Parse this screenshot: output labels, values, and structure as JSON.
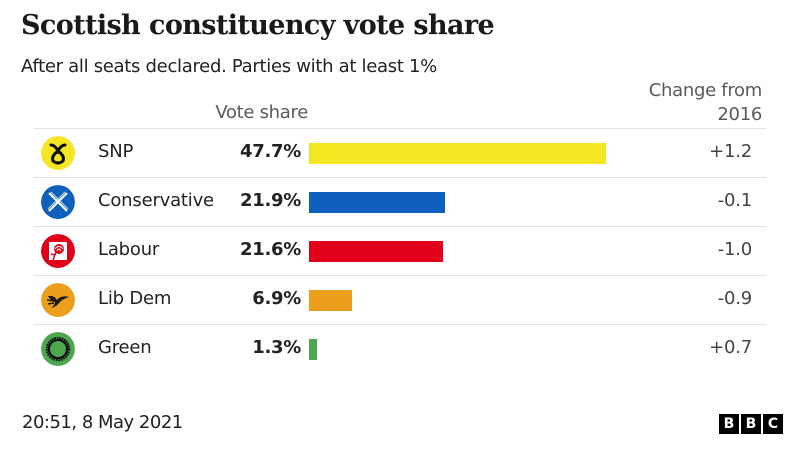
{
  "header": {
    "title": "Scottish constituency vote share",
    "subtitle": "After all seats declared. Parties with at least 1%",
    "col_vote_share": "Vote share",
    "col_change_line1": "Change from",
    "col_change_line2": "2016"
  },
  "rows": [
    {
      "party": "SNP",
      "pct_label": "47.7%",
      "value": 47.7,
      "change": "+1.2",
      "color": "#f5e624",
      "icon": "snp-logo-icon",
      "icon_bg": "#f5e624"
    },
    {
      "party": "Conservative",
      "pct_label": "21.9%",
      "value": 21.9,
      "change": "-0.1",
      "color": "#0f5fbd",
      "icon": "conservative-logo-icon",
      "icon_bg": "#0f5fbd"
    },
    {
      "party": "Labour",
      "pct_label": "21.6%",
      "value": 21.6,
      "change": "-1.0",
      "color": "#e0001a",
      "icon": "labour-rose-icon",
      "icon_bg": "#e0001a"
    },
    {
      "party": "Lib Dem",
      "pct_label": "6.9%",
      "value": 6.9,
      "change": "-0.9",
      "color": "#eb9f1c",
      "icon": "libdem-bird-icon",
      "icon_bg": "#eb9f1c"
    },
    {
      "party": "Green",
      "pct_label": "1.3%",
      "value": 1.3,
      "change": "+0.7",
      "color": "#4ca74f",
      "icon": "green-logo-icon",
      "icon_bg": "#4ca74f"
    }
  ],
  "footer": {
    "timestamp": "20:51, 8 May 2021",
    "brand": [
      "B",
      "B",
      "C"
    ]
  },
  "chart_data": {
    "type": "bar",
    "orientation": "horizontal",
    "title": "Scottish constituency vote share",
    "subtitle": "After all seats declared. Parties with at least 1%",
    "categories": [
      "SNP",
      "Conservative",
      "Labour",
      "Lib Dem",
      "Green"
    ],
    "series": [
      {
        "name": "Vote share (%)",
        "values": [
          47.7,
          21.9,
          21.6,
          6.9,
          1.3
        ]
      },
      {
        "name": "Change from 2016",
        "values": [
          1.2,
          -0.1,
          -1.0,
          -0.9,
          0.7
        ]
      }
    ],
    "colors": [
      "#f5e624",
      "#0f5fbd",
      "#e0001a",
      "#eb9f1c",
      "#4ca74f"
    ],
    "xlabel": "Vote share",
    "ylabel": "",
    "grid": false,
    "legend": "none",
    "source_note": "20:51, 8 May 2021"
  }
}
